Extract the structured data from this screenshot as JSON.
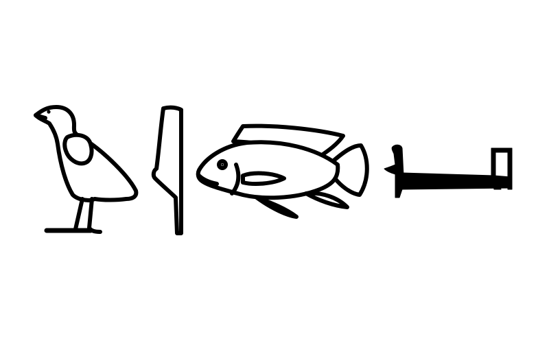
{
  "colors": {
    "background": "#ffffff",
    "ink": "#000000"
  },
  "glyphs": [
    {
      "icon": "quail-chick-hieroglyph-icon"
    },
    {
      "icon": "reed-leaf-hieroglyph-icon"
    },
    {
      "icon": "tilapia-fish-hieroglyph-icon"
    },
    {
      "icon": "bed-on-lion-legs-hieroglyph-icon"
    }
  ]
}
